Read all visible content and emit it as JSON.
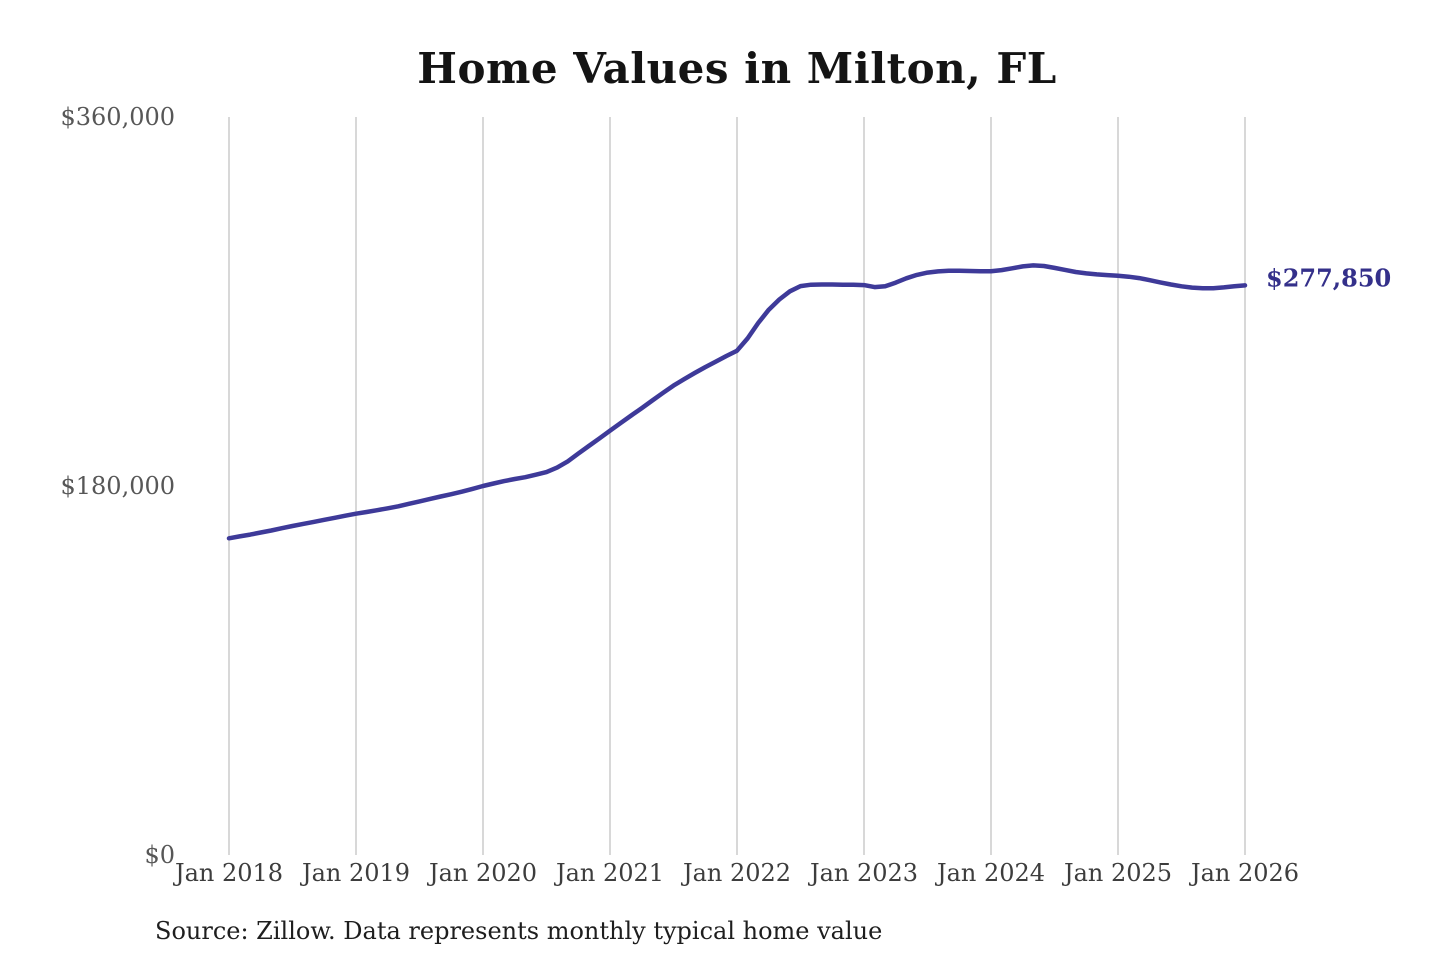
{
  "title": "Home Values in Milton, FL",
  "source_note": "Source: Zillow. Data represents monthly typical home value",
  "end_label": "$277,850",
  "colors": {
    "line": "#3e3a99",
    "end_label": "#34308a",
    "grid": "#cccccc",
    "y_tick": "#575757",
    "x_tick": "#3d3d3d",
    "title": "#141414",
    "source": "#1e1e1e"
  },
  "chart_data": {
    "type": "line",
    "title": "Home Values in Milton, FL",
    "xlabel": "",
    "ylabel": "",
    "x_start": "Jan 2018",
    "x_end": "Jan 2026",
    "x_frequency": "monthly",
    "x_tick_labels": [
      "Jan 2018",
      "Jan 2019",
      "Jan 2020",
      "Jan 2021",
      "Jan 2022",
      "Jan 2023",
      "Jan 2024",
      "Jan 2025",
      "Jan 2026"
    ],
    "y_ticks": [
      {
        "label": "$360,000",
        "value": 360000
      },
      {
        "label": "$180,000",
        "value": 180000
      },
      {
        "label": "$0",
        "value": 0
      }
    ],
    "ylim": [
      0,
      360000
    ],
    "grid": "vertical-only",
    "legend": "none",
    "end_annotation": {
      "label": "$277,850",
      "value": 277850
    },
    "series": [
      {
        "name": "Monthly typical home value",
        "values": [
          154500,
          155400,
          156300,
          157300,
          158300,
          159400,
          160500,
          161500,
          162500,
          163500,
          164500,
          165500,
          166500,
          167300,
          168200,
          169100,
          170100,
          171300,
          172500,
          173700,
          174900,
          176000,
          177200,
          178600,
          180000,
          181200,
          182400,
          183400,
          184300,
          185500,
          186800,
          189000,
          192000,
          195800,
          199500,
          203200,
          207000,
          210700,
          214400,
          218000,
          221700,
          225400,
          229000,
          232100,
          235100,
          238000,
          240700,
          243400,
          246000,
          252000,
          259500,
          266000,
          271000,
          275000,
          277500,
          278200,
          278300,
          278300,
          278200,
          278200,
          278000,
          277000,
          277400,
          279200,
          281300,
          283000,
          284100,
          284700,
          285000,
          285000,
          284900,
          284800,
          284800,
          285300,
          286200,
          287100,
          287600,
          287300,
          286400,
          285400,
          284400,
          283700,
          283200,
          282900,
          282600,
          282100,
          281400,
          280400,
          279300,
          278300,
          277400,
          276800,
          276500,
          276500,
          276900,
          277400,
          277850
        ]
      }
    ]
  }
}
